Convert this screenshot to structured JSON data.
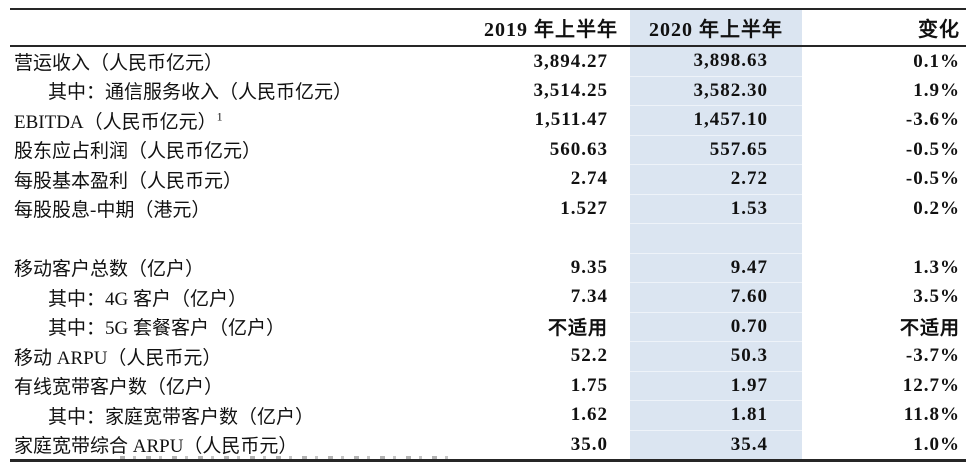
{
  "table": {
    "headers": {
      "label": "",
      "h2019": "2019 年上半年",
      "h2020": "2020 年上半年",
      "change": "变化"
    },
    "highlight_color": "#dbe5f1",
    "na_text": "不适用",
    "rows": [
      {
        "label": "营运收入（人民币亿元）",
        "indent": false,
        "y2019": "3,894.27",
        "y2020": "3,898.63",
        "change": "0.1%"
      },
      {
        "label": "其中：通信服务收入（人民币亿元）",
        "indent": true,
        "y2019": "3,514.25",
        "y2020": "3,582.30",
        "change": "1.9%"
      },
      {
        "label": "EBITDA（人民币亿元）",
        "sup": "1",
        "indent": false,
        "y2019": "1,511.47",
        "y2020": "1,457.10",
        "change": "-3.6%"
      },
      {
        "label": "股东应占利润（人民币亿元）",
        "indent": false,
        "y2019": "560.63",
        "y2020": "557.65",
        "change": "-0.5%"
      },
      {
        "label": "每股基本盈利（人民币元）",
        "indent": false,
        "y2019": "2.74",
        "y2020": "2.72",
        "change": "-0.5%"
      },
      {
        "label": "每股股息-中期（港元）",
        "indent": false,
        "y2019": "1.527",
        "y2020": "1.53",
        "change": "0.2%"
      },
      {
        "spacer": true
      },
      {
        "label": "移动客户总数（亿户）",
        "indent": false,
        "y2019": "9.35",
        "y2020": "9.47",
        "change": "1.3%"
      },
      {
        "label": "其中：4G 客户（亿户）",
        "indent": true,
        "y2019": "7.34",
        "y2020": "7.60",
        "change": "3.5%"
      },
      {
        "label": "其中：5G 套餐客户（亿户）",
        "indent": true,
        "y2019": "不适用",
        "y2020": "0.70",
        "change": "不适用"
      },
      {
        "label": "移动 ARPU（人民币元）",
        "indent": false,
        "y2019": "52.2",
        "y2020": "50.3",
        "change": "-3.7%"
      },
      {
        "label": "有线宽带客户数（亿户）",
        "indent": false,
        "y2019": "1.75",
        "y2020": "1.97",
        "change": "12.7%"
      },
      {
        "label": "其中：家庭宽带客户数（亿户）",
        "indent": true,
        "y2019": "1.62",
        "y2020": "1.81",
        "change": "11.8%"
      },
      {
        "label": "家庭宽带综合 ARPU（人民币元）",
        "indent": false,
        "y2019": "35.0",
        "y2020": "35.4",
        "change": "1.0%"
      }
    ]
  }
}
